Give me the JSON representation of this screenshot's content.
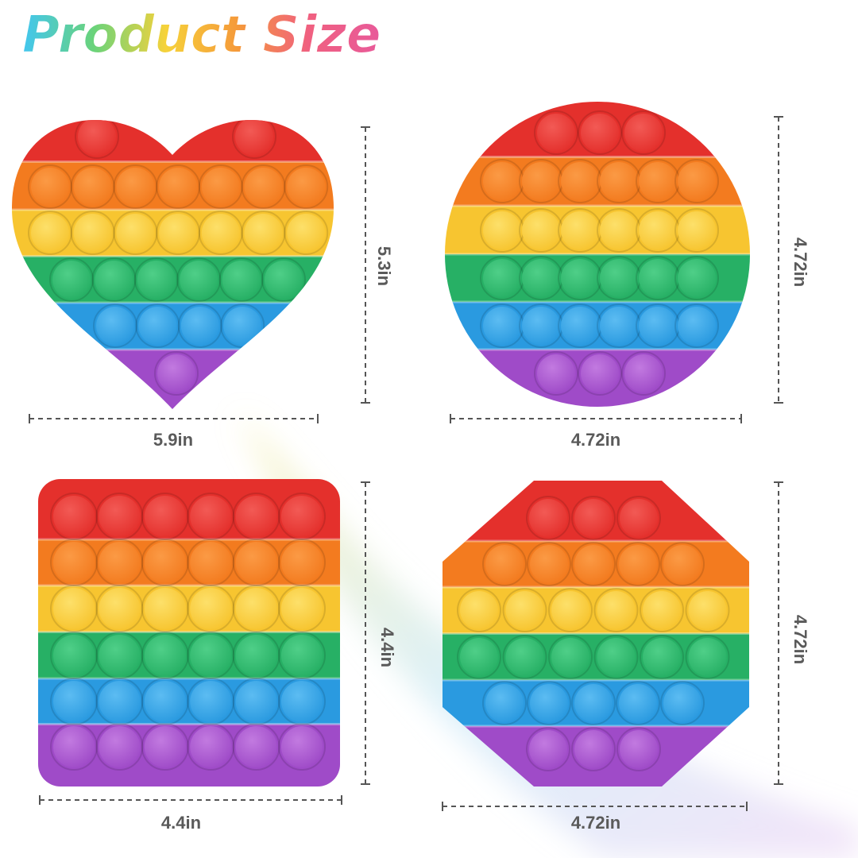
{
  "title": "Product Size",
  "products": [
    {
      "width": "5.9in",
      "height": "5.3in"
    },
    {
      "width": "4.72in",
      "height": "4.72in"
    },
    {
      "width": "4.4in",
      "height": "4.4in"
    },
    {
      "width": "4.72in",
      "height": "4.72in"
    }
  ]
}
